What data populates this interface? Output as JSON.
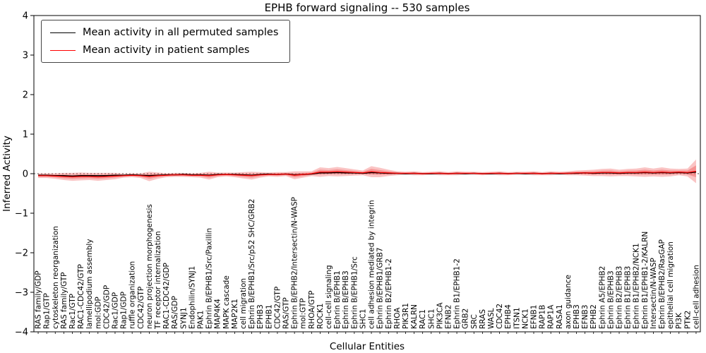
{
  "figure": {
    "title": "EPHB forward signaling -- 530 samples",
    "xlabel": "Cellular Entities",
    "ylabel": "Inferred Activity"
  },
  "legend": {
    "position": "upper left",
    "entries": [
      {
        "label": "Mean activity in all permuted samples",
        "color": "#000000"
      },
      {
        "label": "Mean activity in patient samples",
        "color": "#ff0000"
      }
    ]
  },
  "axes": {
    "ylim": [
      -4,
      4
    ],
    "yticks": [
      4,
      3,
      2,
      1,
      0,
      -1,
      -2,
      -3,
      -4
    ],
    "grid": false
  },
  "colors": {
    "band_fill": "#f26c6c",
    "permuted_line": "#000000",
    "patient_line": "#ff0000"
  },
  "chart_data": {
    "type": "line",
    "title": "EPHB forward signaling -- 530 samples",
    "xlabel": "Cellular Entities",
    "ylabel": "Inferred Activity",
    "ylim": [
      -4,
      4
    ],
    "grid": false,
    "legend_position": "upper left",
    "categories": [
      "RAS family/GDP",
      "Rap1/GTP",
      "cytoskeleton reorganization",
      "RAS family/GTP",
      "Rac1/GTP",
      "RAC1-CDC42/GTP",
      "lamellipodium assembly",
      "mol:GDP",
      "CDC42/GDP",
      "Rac1/GDP",
      "Rap1/GDP",
      "ruffle organization",
      "CDC42/GTP",
      "neuron projection morphogenesis",
      "TF receptor internalization",
      "RAC1-CDC42/GDP",
      "RAS/GDP",
      "SYNJ1",
      "Endophilin/SYNJ1",
      "PAK1",
      "Ephrin B/EPHB1/Src/Paxillin",
      "MAP4K4",
      "MAPK cascade",
      "MAP2K1",
      "cell migration",
      "Ephrin B/EPHB1/Src/p52 SHC/GRB2",
      "EPHB3",
      "EPHB1",
      "CDC42/GTP",
      "RAS/GTP",
      "Ephrin B/EPHB2/Intersectin/N-WASP",
      "mol:GTP",
      "RHOA/GTP",
      "ROCK1",
      "cell-cell signaling",
      "Ephrin B/EPHB1",
      "Ephrin B/EPHB3",
      "Ephrin B/EPHB1/Src",
      "SHC1",
      "cell adhesion mediated by integrin",
      "Ephrin B/EPHB1/GRB7",
      "Ephrin B2/EPHB1-2",
      "RHOA",
      "PIK3R1",
      "KALRN",
      "RAC1",
      "SHC1",
      "PIK3CA",
      "EFNB2",
      "Ephrin B1/EPHB1-2",
      "GRB2",
      "SRC",
      "RRAS",
      "WASL",
      "CDC42",
      "EPHB4",
      "ITSN1",
      "NCK1",
      "EFNB1",
      "RAP1B",
      "RAP1A",
      "RASA1",
      "axon guidance",
      "EPHB3",
      "EFNB3",
      "EPHB2",
      "Ephrin A5/EPHB2",
      "Ephrin B/EPHB3",
      "Ephrin B2/EPHB3",
      "Ephrin B1/EPHB3",
      "Ephrin B1/EPHB2/NCK1",
      "Ephrin B1/EPHB1-2/KALRN",
      "Intersectin/N-WASP",
      "Ephrin B/EPHB2/RasGAP",
      "epithelial cell migration",
      "PI3K",
      "PTK2",
      "cell-cell adhesion"
    ],
    "series": [
      {
        "name": "Mean activity in all permuted samples",
        "color": "#000000",
        "values": [
          -0.04,
          -0.04,
          -0.05,
          -0.05,
          -0.06,
          -0.05,
          -0.05,
          -0.05,
          -0.05,
          -0.04,
          -0.04,
          -0.03,
          -0.04,
          -0.05,
          -0.04,
          -0.03,
          -0.03,
          -0.02,
          -0.03,
          -0.03,
          -0.04,
          -0.02,
          -0.02,
          -0.02,
          -0.03,
          -0.04,
          -0.02,
          -0.01,
          -0.02,
          -0.01,
          -0.03,
          -0.02,
          -0.01,
          0.02,
          0.02,
          0.03,
          0.02,
          0.02,
          0.01,
          0.03,
          0.02,
          0.01,
          0.01,
          0.0,
          0.01,
          0.0,
          0.0,
          0.01,
          0.0,
          0.01,
          0.0,
          0.01,
          0.0,
          0.0,
          0.01,
          0.0,
          0.01,
          0.0,
          0.01,
          0.0,
          0.01,
          0.0,
          0.01,
          0.01,
          0.02,
          0.01,
          0.02,
          0.02,
          0.01,
          0.02,
          0.02,
          0.03,
          0.02,
          0.03,
          0.02,
          0.03,
          0.02,
          0.04
        ]
      },
      {
        "name": "Mean activity in patient samples",
        "color": "#ff0000",
        "values": [
          -0.05,
          -0.05,
          -0.06,
          -0.07,
          -0.08,
          -0.07,
          -0.07,
          -0.08,
          -0.07,
          -0.06,
          -0.05,
          -0.04,
          -0.05,
          -0.07,
          -0.05,
          -0.04,
          -0.03,
          -0.03,
          -0.04,
          -0.04,
          -0.05,
          -0.03,
          -0.02,
          -0.03,
          -0.04,
          -0.05,
          -0.03,
          -0.02,
          -0.02,
          -0.01,
          -0.04,
          -0.02,
          0.0,
          0.04,
          0.04,
          0.05,
          0.04,
          0.03,
          0.02,
          0.05,
          0.03,
          0.02,
          0.01,
          0.01,
          0.01,
          0.0,
          0.01,
          0.01,
          0.0,
          0.01,
          0.01,
          0.01,
          0.0,
          0.01,
          0.01,
          0.0,
          0.01,
          0.01,
          0.01,
          0.0,
          0.01,
          0.01,
          0.01,
          0.02,
          0.02,
          0.02,
          0.03,
          0.03,
          0.02,
          0.03,
          0.03,
          0.04,
          0.03,
          0.04,
          0.03,
          0.04,
          0.03,
          0.06
        ]
      }
    ],
    "band": {
      "name": "patient samples spread (shaded)",
      "color": "#f26c6c",
      "halfwidths": [
        0.06,
        0.06,
        0.07,
        0.09,
        0.1,
        0.1,
        0.09,
        0.1,
        0.09,
        0.08,
        0.05,
        0.05,
        0.06,
        0.12,
        0.08,
        0.05,
        0.05,
        0.05,
        0.05,
        0.06,
        0.1,
        0.06,
        0.05,
        0.06,
        0.08,
        0.1,
        0.07,
        0.05,
        0.06,
        0.05,
        0.1,
        0.08,
        0.06,
        0.12,
        0.1,
        0.12,
        0.1,
        0.08,
        0.06,
        0.14,
        0.12,
        0.08,
        0.05,
        0.04,
        0.05,
        0.04,
        0.04,
        0.05,
        0.04,
        0.05,
        0.04,
        0.04,
        0.04,
        0.04,
        0.05,
        0.04,
        0.04,
        0.04,
        0.05,
        0.04,
        0.05,
        0.04,
        0.05,
        0.06,
        0.07,
        0.08,
        0.09,
        0.1,
        0.08,
        0.09,
        0.1,
        0.12,
        0.1,
        0.12,
        0.1,
        0.08,
        0.1,
        0.3
      ]
    }
  }
}
